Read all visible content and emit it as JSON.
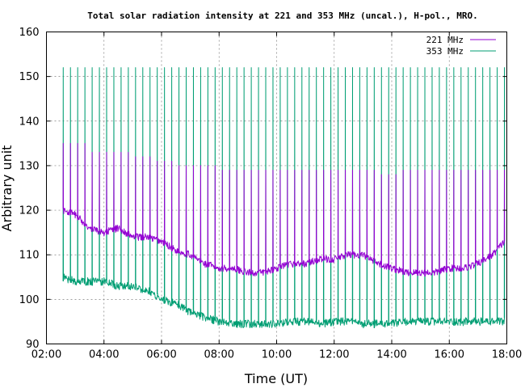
{
  "chart_data": {
    "type": "line",
    "title": "Total solar radiation intensity at 221 and 353 MHz (uncal.), H-pol., MRO.",
    "xlabel": "Time (UT)",
    "ylabel": "Arbitrary unit",
    "xlim": [
      "02:00",
      "18:00"
    ],
    "ylim": [
      90,
      160
    ],
    "x_ticks": [
      "02:00",
      "04:00",
      "06:00",
      "08:00",
      "10:00",
      "12:00",
      "14:00",
      "16:00",
      "18:00"
    ],
    "y_ticks": [
      "90",
      "100",
      "110",
      "120",
      "130",
      "140",
      "150",
      "160"
    ],
    "grid": true,
    "legend_position": "top-right",
    "series": [
      {
        "name": "221 MHz",
        "color": "#9400d3",
        "x": [
          "02:35",
          "03:00",
          "03:30",
          "04:00",
          "04:30",
          "05:00",
          "05:30",
          "06:00",
          "06:30",
          "07:00",
          "07:30",
          "08:00",
          "08:30",
          "09:00",
          "09:30",
          "10:00",
          "10:30",
          "11:00",
          "11:30",
          "12:00",
          "12:30",
          "13:00",
          "13:30",
          "14:00",
          "14:30",
          "15:00",
          "15:30",
          "16:00",
          "16:30",
          "17:00",
          "17:30",
          "17:55"
        ],
        "values": [
          120,
          119,
          116,
          115,
          116,
          114,
          114,
          113,
          111,
          110,
          108,
          107,
          107,
          106,
          106,
          107,
          108,
          108,
          109,
          109,
          110,
          110,
          108,
          107,
          106,
          106,
          106,
          107,
          107,
          108,
          110,
          113
        ],
        "spike_values": [
          135,
          133,
          133,
          132,
          131,
          130,
          130,
          129,
          129,
          129,
          129,
          129,
          129,
          129,
          128,
          129,
          129,
          129,
          129,
          129
        ]
      },
      {
        "name": "353 MHz",
        "color": "#009e73",
        "x": [
          "02:35",
          "03:00",
          "03:30",
          "04:00",
          "04:30",
          "05:00",
          "05:30",
          "06:00",
          "06:30",
          "07:00",
          "07:30",
          "08:00",
          "08:30",
          "09:00",
          "09:30",
          "10:00",
          "10:30",
          "11:00",
          "11:30",
          "12:00",
          "12:30",
          "13:00",
          "13:30",
          "14:00",
          "14:30",
          "15:00",
          "15:30",
          "16:00",
          "16:30",
          "17:00",
          "17:30",
          "17:55"
        ],
        "values": [
          105,
          104,
          104,
          104,
          103,
          103,
          102,
          100,
          99,
          97,
          96,
          95,
          94.5,
          94.5,
          94.5,
          94.5,
          95,
          95,
          94.5,
          95,
          95,
          94.5,
          94.5,
          94.5,
          95,
          95,
          95,
          95,
          95,
          95,
          95,
          95
        ],
        "spike_values": [
          152,
          152,
          152,
          152,
          152,
          152,
          152,
          152,
          152,
          152,
          152,
          152,
          152,
          152,
          152,
          152,
          152,
          152,
          152,
          152
        ]
      }
    ]
  }
}
